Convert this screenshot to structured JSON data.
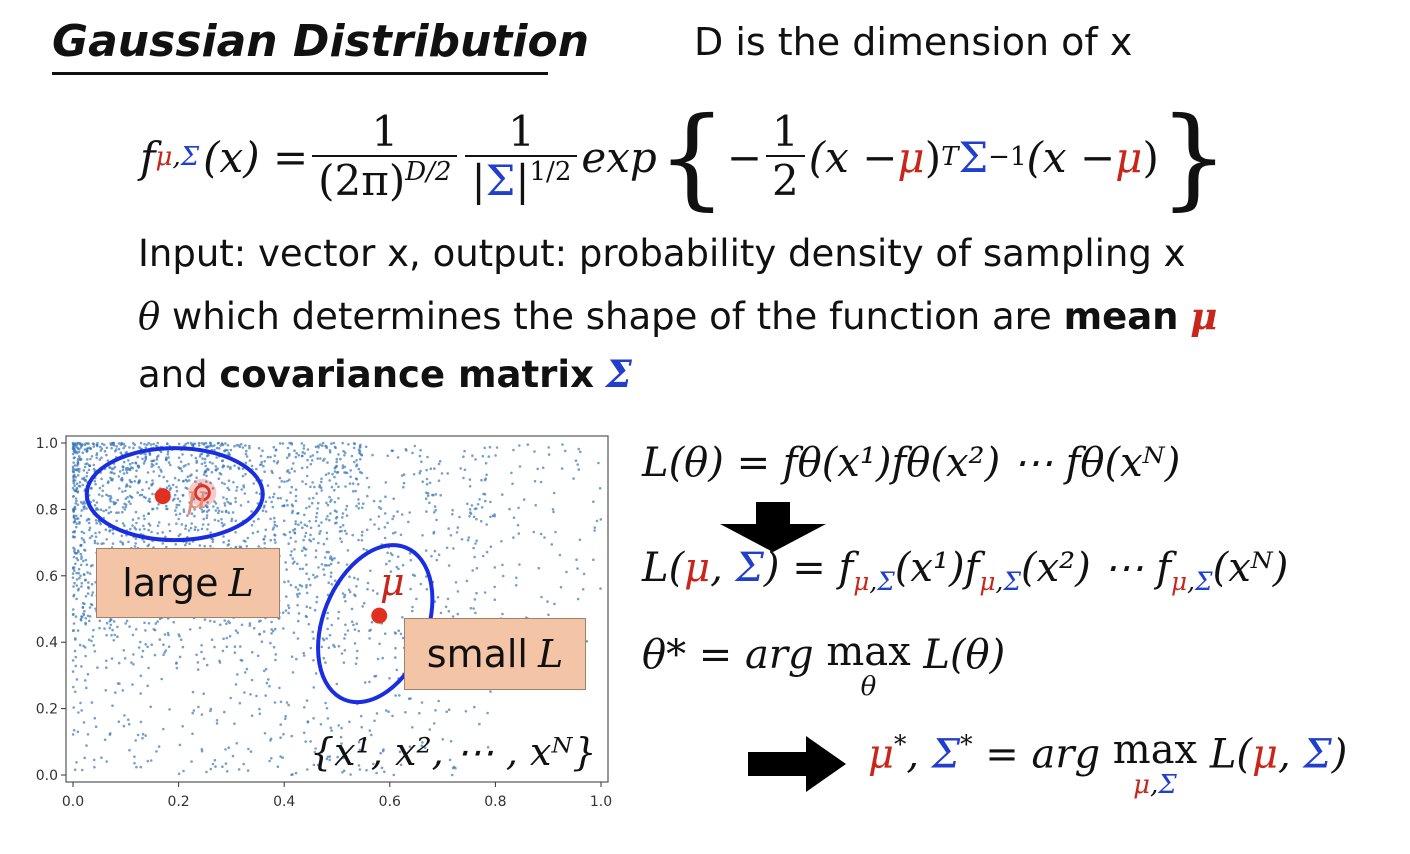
{
  "title": "Gaussian Distribution",
  "dimension_note": "D is the dimension of x",
  "formula": {
    "f": "f",
    "mu": "μ",
    "comma": ",",
    "Sigma": "Σ",
    "arg": "(x) =",
    "one": "1",
    "two": "2",
    "den1_pre": "(2π)",
    "den1_exp": "D/2",
    "den2_bar_l": "|",
    "den2_bar_r": "|",
    "den2_exp": "1/2",
    "exp": "exp",
    "lbrace": "{",
    "rbrace": "}",
    "minus": "−",
    "x_minus": "(x − ",
    "close": ")",
    "T": "T",
    "inv": "−1"
  },
  "lines": {
    "input": "Input: vector x, output: probability density of sampling x",
    "theta_sym": "θ",
    "theta_rest": " which determines the shape of the function are ",
    "mean_word": "mean",
    "mean_sym": "μ",
    "and_word": "and ",
    "cov_word": "covariance matrix",
    "cov_sym": "Σ"
  },
  "plot": {
    "large_label_text": "large ",
    "large_label_sym": "L",
    "small_label_text": "small ",
    "small_label_sym": "L",
    "mu_label": "μ",
    "sample_set": "{x¹, x², ⋯ , xᴺ}",
    "x_ticks": [
      "0.0",
      "0.2",
      "0.4",
      "0.6",
      "0.8",
      "1.0"
    ],
    "y_ticks": [
      "0.0",
      "0.2",
      "0.4",
      "0.6",
      "0.8",
      "1.0"
    ],
    "colors": {
      "points": "#3a78b5",
      "ellipse": "#1a2ee0",
      "center": "#e03020"
    }
  },
  "chart_data": {
    "type": "scatter",
    "xlim": [
      0,
      1
    ],
    "ylim": [
      0,
      1
    ],
    "grid": false,
    "ellipses": [
      {
        "center": [
          0.17,
          0.84
        ],
        "label": "large L"
      },
      {
        "center": [
          0.58,
          0.48
        ],
        "label": "small L"
      }
    ],
    "extra_center": [
      0.245,
      0.85
    ]
  },
  "equations": {
    "eq1": "L(θ) = f",
    "eq1_rest": "θ(x¹)fθ(x²) ⋯ fθ(xᴺ)",
    "eq3": "θ* = arg max L(θ)",
    "eq3_sub": "θ",
    "eq4_sub": "μ,Σ"
  }
}
